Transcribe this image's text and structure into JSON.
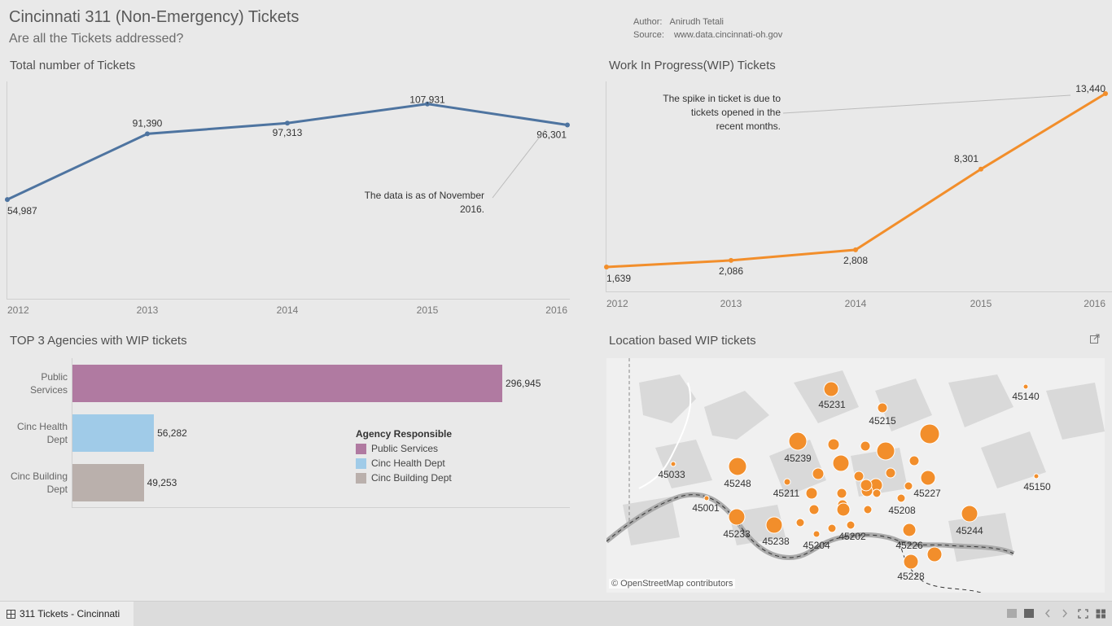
{
  "header": {
    "title": "Cincinnati 311  (Non-Emergency) Tickets",
    "subtitle": "Are all the Tickets addressed?",
    "author_label": "Author:",
    "author_value": "Anirudh Tetali",
    "source_label": "Source:",
    "source_value": "www.data.cincinnati-oh.gov"
  },
  "chart_data": [
    {
      "type": "line",
      "title": "Total number of Tickets",
      "x": [
        "2012",
        "2013",
        "2014",
        "2015",
        "2016"
      ],
      "values": [
        54987,
        91390,
        97313,
        107931,
        96301
      ],
      "value_labels": [
        "54,987",
        "91,390",
        "97,313",
        "107,931",
        "96,301"
      ],
      "color": "#4e74a0",
      "annotation": [
        "The data is as of November",
        "2016."
      ],
      "ylim": [
        0,
        115000
      ]
    },
    {
      "type": "line",
      "title": "Work In Progress(WIP) Tickets",
      "x": [
        "2012",
        "2013",
        "2014",
        "2015",
        "2016"
      ],
      "values": [
        1639,
        2086,
        2808,
        8301,
        13440
      ],
      "value_labels": [
        "1,639",
        "2,086",
        "2,808",
        "8,301",
        "13,440"
      ],
      "color": "#f28e2b",
      "annotation": [
        "The spike in ticket is due to",
        "tickets opened in the",
        "recent months."
      ],
      "ylim": [
        0,
        14000
      ]
    },
    {
      "type": "bar",
      "title": "TOP 3 Agencies with  WIP tickets",
      "categories": [
        "Public Services",
        "Cinc Health Dept",
        "Cinc Building Dept"
      ],
      "category_lines": [
        [
          "Public",
          "Services"
        ],
        [
          "Cinc Health",
          "Dept"
        ],
        [
          "Cinc Building",
          "Dept"
        ]
      ],
      "values": [
        296945,
        56282,
        49253
      ],
      "value_labels": [
        "296,945",
        "56,282",
        "49,253"
      ],
      "colors": [
        "#b07aa1",
        "#a0cbe8",
        "#bab0ac"
      ],
      "legend_title": "Agency Responsible",
      "xlim": [
        0,
        300000
      ]
    }
  ],
  "map": {
    "title": "Location based WIP tickets",
    "attribution": "© OpenStreetMap contributors",
    "marker_color": "#f28e2b",
    "zip_labels": [
      "45231",
      "45215",
      "45140",
      "45239",
      "45033",
      "45248",
      "45211",
      "45227",
      "45150",
      "45001",
      "45208",
      "45244",
      "45233",
      "45238",
      "45204",
      "45202",
      "45226",
      "45228"
    ]
  },
  "footer": {
    "tab_label": "311 Tickets - Cincinnati",
    "tab_icon": "sheet-grid-icon",
    "controls": [
      "layout-icon",
      "sheet-icon",
      "back-icon",
      "forward-icon",
      "fullscreen-icon",
      "grid-icon"
    ]
  }
}
